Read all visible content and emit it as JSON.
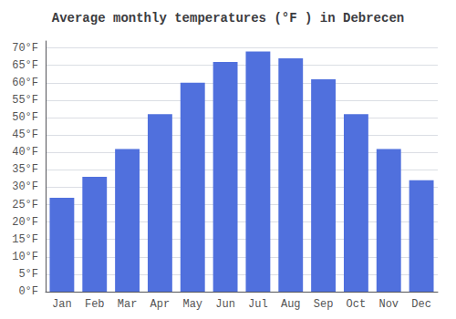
{
  "chart_data": {
    "type": "bar",
    "title": "Average monthly temperatures (°F ) in Debrecen",
    "categories": [
      "Jan",
      "Feb",
      "Mar",
      "Apr",
      "May",
      "Jun",
      "Jul",
      "Aug",
      "Sep",
      "Oct",
      "Nov",
      "Dec"
    ],
    "values": [
      27,
      33,
      41,
      51,
      60,
      66,
      69,
      67,
      61,
      51,
      41,
      32
    ],
    "ylim": [
      0,
      72
    ],
    "yticks": [
      {
        "value": 0,
        "label": "0°F"
      },
      {
        "value": 5,
        "label": "5°F"
      },
      {
        "value": 10,
        "label": "10°F"
      },
      {
        "value": 15,
        "label": "15°F"
      },
      {
        "value": 20,
        "label": "20°F"
      },
      {
        "value": 25,
        "label": "25°F"
      },
      {
        "value": 30,
        "label": "30°F"
      },
      {
        "value": 35,
        "label": "35°F"
      },
      {
        "value": 40,
        "label": "40°F"
      },
      {
        "value": 45,
        "label": "45°F"
      },
      {
        "value": 50,
        "label": "50°F"
      },
      {
        "value": 55,
        "label": "55°F"
      },
      {
        "value": 60,
        "label": "60°F"
      },
      {
        "value": 65,
        "label": "65°F"
      },
      {
        "value": 70,
        "label": "70°F"
      }
    ],
    "grid": true
  }
}
